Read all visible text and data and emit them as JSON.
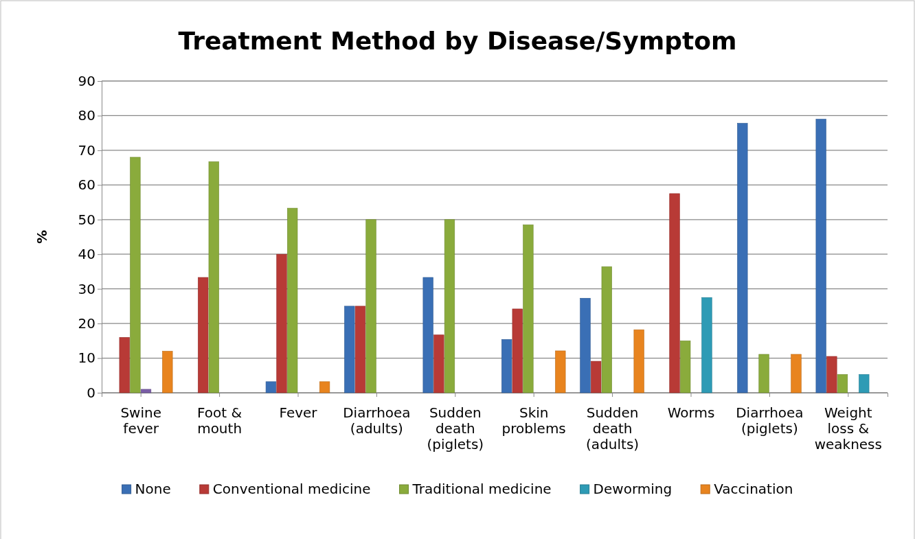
{
  "chart_data": {
    "type": "bar",
    "title": "Treatment Method by Disease/Symptom",
    "ylabel": "%",
    "categories": [
      "Swine fever",
      "Foot & mouth",
      "Fever",
      "Diarrhoea (adults)",
      "Sudden death (piglets)",
      "Skin problems",
      "Sudden death (adults)",
      "Worms",
      "Diarrhoea (piglets)",
      "Weight loss & weakness"
    ],
    "series": [
      {
        "name": "None",
        "color": "#3a6fb5",
        "values": [
          null,
          null,
          3.2,
          25,
          33.3,
          15.4,
          27.3,
          null,
          77.8,
          79
        ]
      },
      {
        "name": "Conventional medicine",
        "color": "#b83a36",
        "values": [
          16,
          33.3,
          40,
          25,
          16.7,
          24.2,
          9.1,
          57.5,
          null,
          10.5
        ]
      },
      {
        "name": "Traditional medicine",
        "color": "#8aab3c",
        "values": [
          68,
          66.7,
          53.3,
          50,
          50,
          48.5,
          36.4,
          15,
          11.1,
          5.3
        ]
      },
      {
        "color": "#7b5ea7",
        "values": [
          1,
          null,
          null,
          null,
          null,
          null,
          null,
          null,
          null,
          null
        ]
      },
      {
        "name": "Deworming",
        "color": "#2e9bb5",
        "values": [
          null,
          null,
          null,
          null,
          null,
          null,
          null,
          27.5,
          null,
          5.3
        ]
      },
      {
        "name": "Vaccination",
        "color": "#e8841f",
        "values": [
          12,
          null,
          3.2,
          null,
          null,
          12.1,
          18.2,
          null,
          11.1,
          null
        ]
      }
    ],
    "ylim": [
      0,
      90
    ],
    "yticks": [
      0,
      10,
      20,
      30,
      40,
      50,
      60,
      70,
      80,
      90
    ],
    "grid": "y",
    "legend": "bottom"
  }
}
